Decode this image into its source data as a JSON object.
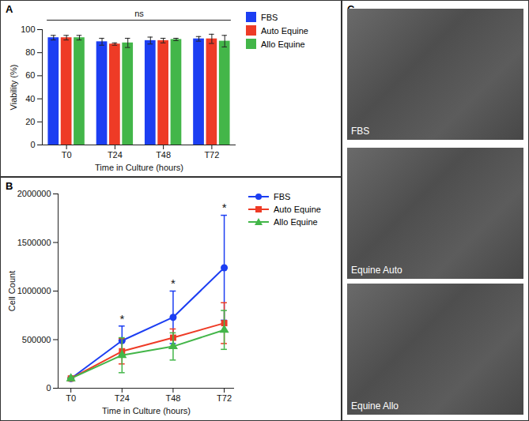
{
  "chart_data": [
    {
      "type": "bar",
      "title": "A",
      "x_label": "Time in Culture (hours)",
      "y_label": "Viability (%)",
      "categories": [
        "T0",
        "T24",
        "T48",
        "T72"
      ],
      "series": [
        {
          "name": "FBS",
          "color": "#1c3ef2",
          "values": [
            93,
            89.5,
            90.5,
            92
          ],
          "errors": [
            2,
            3,
            3,
            2
          ]
        },
        {
          "name": "Auto Equine",
          "color": "#ee3b26",
          "values": [
            93,
            87.5,
            90.5,
            92
          ],
          "errors": [
            2,
            1,
            2,
            4
          ]
        },
        {
          "name": "Allo Equine",
          "color": "#43b649",
          "values": [
            93,
            88.5,
            91.5,
            90
          ],
          "errors": [
            2,
            4,
            1,
            5
          ]
        }
      ],
      "ylim": [
        0,
        100
      ],
      "yticks": [
        0,
        20,
        40,
        60,
        80,
        100
      ],
      "grid": false,
      "legend": "upper right",
      "annotations": [
        {
          "text": "ns",
          "from": "T0",
          "to": "T72"
        }
      ]
    },
    {
      "type": "line",
      "title": "B",
      "x_label": "Time in Culture (hours)",
      "y_label": "Cell Count",
      "categories": [
        "T0",
        "T24",
        "T48",
        "T72"
      ],
      "series": [
        {
          "name": "FBS",
          "color": "#1c3ef2",
          "marker": "circle",
          "values": [
            100000,
            490000,
            730000,
            1240000
          ],
          "errors": [
            0,
            150000,
            270000,
            540000
          ]
        },
        {
          "name": "Auto Equine",
          "color": "#ee3b26",
          "marker": "square",
          "values": [
            100000,
            380000,
            520000,
            670000
          ],
          "errors": [
            0,
            130000,
            90000,
            210000
          ]
        },
        {
          "name": "Allo Equine",
          "color": "#43b649",
          "marker": "triangle",
          "values": [
            100000,
            340000,
            430000,
            600000
          ],
          "errors": [
            0,
            180000,
            140000,
            200000
          ]
        }
      ],
      "ylim": [
        0,
        2000000
      ],
      "yticks": [
        0,
        500000,
        1000000,
        1500000,
        2000000
      ],
      "grid": false,
      "legend": "upper right",
      "annotations": [
        {
          "text": "*",
          "x": "T24"
        },
        {
          "text": "*",
          "x": "T48"
        },
        {
          "text": "*",
          "x": "T72"
        }
      ]
    }
  ],
  "images": {
    "title": "C",
    "labels": [
      "FBS",
      "Equine Auto",
      "Equine Allo"
    ]
  }
}
